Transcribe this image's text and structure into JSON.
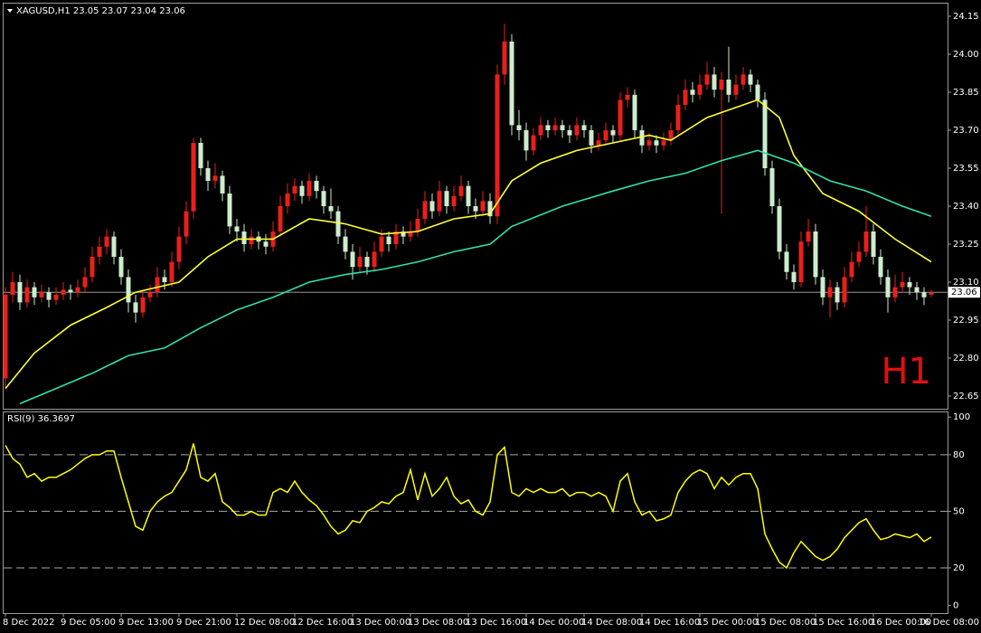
{
  "chart_data": {
    "type": "candlestick",
    "header": "XAGUSD,H1  23.05 23.07 23.04 23.06",
    "timeframe_badge": "H1",
    "up_color": "#e8201c",
    "down_color": "#cdeccd",
    "bid": 23.06,
    "ylim": [
      22.6,
      24.2
    ],
    "yticks": [
      {
        "value": 22.65,
        "label": "22.65"
      },
      {
        "value": 22.8,
        "label": "22.80"
      },
      {
        "value": 22.95,
        "label": "22.95"
      },
      {
        "value": 23.1,
        "label": "23.10"
      },
      {
        "value": 23.25,
        "label": "23.25"
      },
      {
        "value": 23.4,
        "label": "23.40"
      },
      {
        "value": 23.55,
        "label": "23.55"
      },
      {
        "value": 23.7,
        "label": "23.70"
      },
      {
        "value": 23.85,
        "label": "23.85"
      },
      {
        "value": 24,
        "label": "24.00"
      },
      {
        "value": 24.15,
        "label": "24.15"
      }
    ],
    "categories": [
      "8 Dec 2022",
      null,
      null,
      null,
      null,
      null,
      null,
      null,
      "9 Dec 05:00",
      null,
      null,
      null,
      null,
      null,
      null,
      null,
      "9 Dec 13:00",
      null,
      null,
      null,
      null,
      null,
      null,
      null,
      "9 Dec 21:00",
      null,
      null,
      null,
      null,
      null,
      null,
      null,
      "12 Dec 08:00",
      null,
      null,
      null,
      null,
      null,
      null,
      null,
      "12 Dec 16:00",
      null,
      null,
      null,
      null,
      null,
      null,
      null,
      "13 Dec 00:00",
      null,
      null,
      null,
      null,
      null,
      null,
      null,
      "13 Dec 08:00",
      null,
      null,
      null,
      null,
      null,
      null,
      null,
      "13 Dec 16:00",
      null,
      null,
      null,
      null,
      null,
      null,
      null,
      "14 Dec 00:00",
      null,
      null,
      null,
      null,
      null,
      null,
      null,
      "14 Dec 08:00",
      null,
      null,
      null,
      null,
      null,
      null,
      null,
      "14 Dec 16:00",
      null,
      null,
      null,
      null,
      null,
      null,
      null,
      "15 Dec 00:00",
      null,
      null,
      null,
      null,
      null,
      null,
      null,
      "15 Dec 08:00",
      null,
      null,
      null,
      null,
      null,
      null,
      null,
      "15 Dec 16:00",
      null,
      null,
      null,
      null,
      null,
      null,
      null,
      "16 Dec 00:00",
      null,
      null,
      null,
      null,
      null,
      null,
      null,
      "16 Dec 08:00"
    ],
    "candles": [
      [
        22.72,
        23.08,
        22.68,
        23.05
      ],
      [
        23.05,
        23.14,
        23.02,
        23.1
      ],
      [
        23.1,
        23.13,
        22.99,
        23.02
      ],
      [
        23.02,
        23.11,
        23.0,
        23.08
      ],
      [
        23.08,
        23.1,
        23.01,
        23.04
      ],
      [
        23.04,
        23.09,
        23.02,
        23.06
      ],
      [
        23.06,
        23.08,
        23.0,
        23.03
      ],
      [
        23.03,
        23.08,
        23.01,
        23.05
      ],
      [
        23.05,
        23.1,
        23.03,
        23.07
      ],
      [
        23.07,
        23.09,
        23.03,
        23.06
      ],
      [
        23.06,
        23.11,
        23.04,
        23.08
      ],
      [
        23.08,
        23.16,
        23.06,
        23.12
      ],
      [
        23.12,
        23.24,
        23.1,
        23.2
      ],
      [
        23.2,
        23.28,
        23.17,
        23.24
      ],
      [
        23.24,
        23.31,
        23.21,
        23.28
      ],
      [
        23.28,
        23.3,
        23.17,
        23.2
      ],
      [
        23.2,
        23.23,
        23.09,
        23.12
      ],
      [
        23.12,
        23.15,
        22.98,
        23.02
      ],
      [
        23.02,
        23.05,
        22.94,
        22.98
      ],
      [
        22.98,
        23.07,
        22.96,
        23.04
      ],
      [
        23.04,
        23.09,
        23.02,
        23.06
      ],
      [
        23.06,
        23.16,
        23.04,
        23.12
      ],
      [
        23.12,
        23.15,
        23.07,
        23.1
      ],
      [
        23.1,
        23.22,
        23.08,
        23.18
      ],
      [
        23.18,
        23.32,
        23.15,
        23.28
      ],
      [
        23.28,
        23.42,
        23.25,
        23.38
      ],
      [
        23.38,
        23.67,
        23.35,
        23.65
      ],
      [
        23.65,
        23.67,
        23.52,
        23.55
      ],
      [
        23.55,
        23.58,
        23.46,
        23.5
      ],
      [
        23.5,
        23.57,
        23.47,
        23.52
      ],
      [
        23.52,
        23.54,
        23.42,
        23.45
      ],
      [
        23.45,
        23.48,
        23.29,
        23.32
      ],
      [
        23.32,
        23.35,
        23.26,
        23.3
      ],
      [
        23.3,
        23.33,
        23.22,
        23.25
      ],
      [
        23.25,
        23.31,
        23.23,
        23.28
      ],
      [
        23.28,
        23.3,
        23.23,
        23.26
      ],
      [
        23.26,
        23.29,
        23.21,
        23.24
      ],
      [
        23.24,
        23.34,
        23.22,
        23.3
      ],
      [
        23.3,
        23.44,
        23.28,
        23.4
      ],
      [
        23.4,
        23.49,
        23.37,
        23.45
      ],
      [
        23.45,
        23.51,
        23.42,
        23.48
      ],
      [
        23.48,
        23.5,
        23.41,
        23.44
      ],
      [
        23.44,
        23.53,
        23.42,
        23.5
      ],
      [
        23.5,
        23.52,
        23.43,
        23.46
      ],
      [
        23.46,
        23.48,
        23.37,
        23.4
      ],
      [
        23.4,
        23.47,
        23.35,
        23.38
      ],
      [
        23.38,
        23.4,
        23.25,
        23.28
      ],
      [
        23.28,
        23.31,
        23.19,
        23.22
      ],
      [
        23.22,
        23.25,
        23.11,
        23.16
      ],
      [
        23.16,
        23.24,
        23.14,
        23.2
      ],
      [
        23.2,
        23.22,
        23.13,
        23.16
      ],
      [
        23.16,
        23.26,
        23.14,
        23.22
      ],
      [
        23.22,
        23.31,
        23.2,
        23.28
      ],
      [
        23.28,
        23.3,
        23.22,
        23.25
      ],
      [
        23.25,
        23.33,
        23.23,
        23.3
      ],
      [
        23.3,
        23.32,
        23.25,
        23.28
      ],
      [
        23.28,
        23.34,
        23.26,
        23.3
      ],
      [
        23.3,
        23.39,
        23.28,
        23.35
      ],
      [
        23.35,
        23.46,
        23.33,
        23.42
      ],
      [
        23.42,
        23.45,
        23.35,
        23.38
      ],
      [
        23.38,
        23.5,
        23.36,
        23.46
      ],
      [
        23.46,
        23.48,
        23.37,
        23.4
      ],
      [
        23.4,
        23.48,
        23.38,
        23.44
      ],
      [
        23.44,
        23.52,
        23.42,
        23.48
      ],
      [
        23.48,
        23.5,
        23.37,
        23.4
      ],
      [
        23.4,
        23.43,
        23.35,
        23.38
      ],
      [
        23.38,
        23.46,
        23.36,
        23.42
      ],
      [
        23.42,
        23.45,
        23.33,
        23.36
      ],
      [
        23.36,
        23.96,
        23.33,
        23.92
      ],
      [
        23.92,
        24.12,
        23.88,
        24.05
      ],
      [
        24.05,
        24.08,
        23.68,
        23.72
      ],
      [
        23.72,
        23.78,
        23.66,
        23.7
      ],
      [
        23.7,
        23.73,
        23.58,
        23.62
      ],
      [
        23.62,
        23.71,
        23.6,
        23.68
      ],
      [
        23.68,
        23.75,
        23.66,
        23.72
      ],
      [
        23.72,
        23.74,
        23.67,
        23.7
      ],
      [
        23.7,
        23.75,
        23.68,
        23.72
      ],
      [
        23.72,
        23.74,
        23.67,
        23.7
      ],
      [
        23.7,
        23.72,
        23.65,
        23.68
      ],
      [
        23.68,
        23.75,
        23.66,
        23.72
      ],
      [
        23.72,
        23.74,
        23.67,
        23.7
      ],
      [
        23.7,
        23.72,
        23.61,
        23.64
      ],
      [
        23.64,
        23.69,
        23.62,
        23.66
      ],
      [
        23.66,
        23.73,
        23.64,
        23.7
      ],
      [
        23.7,
        23.72,
        23.65,
        23.68
      ],
      [
        23.68,
        23.85,
        23.66,
        23.82
      ],
      [
        23.82,
        23.87,
        23.79,
        23.84
      ],
      [
        23.84,
        23.86,
        23.67,
        23.7
      ],
      [
        23.7,
        23.72,
        23.61,
        23.64
      ],
      [
        23.64,
        23.69,
        23.62,
        23.66
      ],
      [
        23.66,
        23.68,
        23.61,
        23.64
      ],
      [
        23.64,
        23.69,
        23.62,
        23.66
      ],
      [
        23.66,
        23.73,
        23.64,
        23.7
      ],
      [
        23.7,
        23.84,
        23.68,
        23.8
      ],
      [
        23.8,
        23.9,
        23.78,
        23.86
      ],
      [
        23.86,
        23.89,
        23.81,
        23.84
      ],
      [
        23.84,
        23.92,
        23.82,
        23.88
      ],
      [
        23.88,
        23.97,
        23.86,
        23.92
      ],
      [
        23.92,
        23.95,
        23.83,
        23.86
      ],
      [
        23.86,
        23.93,
        23.37,
        23.9
      ],
      [
        23.9,
        24.03,
        23.81,
        23.84
      ],
      [
        23.84,
        23.92,
        23.82,
        23.88
      ],
      [
        23.88,
        23.95,
        23.86,
        23.92
      ],
      [
        23.92,
        23.94,
        23.85,
        23.88
      ],
      [
        23.88,
        23.9,
        23.79,
        23.82
      ],
      [
        23.82,
        23.85,
        23.52,
        23.55
      ],
      [
        23.55,
        23.58,
        23.37,
        23.4
      ],
      [
        23.4,
        23.43,
        23.19,
        23.22
      ],
      [
        23.22,
        23.25,
        23.11,
        23.14
      ],
      [
        23.14,
        23.17,
        23.07,
        23.1
      ],
      [
        23.1,
        23.3,
        23.08,
        23.26
      ],
      [
        23.26,
        23.35,
        23.24,
        23.3
      ],
      [
        23.3,
        23.33,
        23.09,
        23.12
      ],
      [
        23.12,
        23.15,
        23.01,
        23.04
      ],
      [
        23.04,
        23.11,
        22.96,
        23.08
      ],
      [
        23.08,
        23.1,
        22.99,
        23.02
      ],
      [
        23.02,
        23.16,
        23.0,
        23.12
      ],
      [
        23.12,
        23.22,
        23.1,
        23.18
      ],
      [
        23.18,
        23.26,
        23.16,
        23.22
      ],
      [
        23.22,
        23.4,
        23.2,
        23.3
      ],
      [
        23.3,
        23.33,
        23.17,
        23.2
      ],
      [
        23.2,
        23.23,
        23.09,
        23.12
      ],
      [
        23.12,
        23.15,
        22.98,
        23.04
      ],
      [
        23.04,
        23.13,
        23.02,
        23.08
      ],
      [
        23.08,
        23.14,
        23.06,
        23.1
      ],
      [
        23.1,
        23.12,
        23.05,
        23.08
      ],
      [
        23.08,
        23.1,
        23.03,
        23.06
      ],
      [
        23.06,
        23.08,
        23.01,
        23.04
      ],
      [
        23.05,
        23.07,
        23.04,
        23.06
      ]
    ],
    "series": [
      {
        "color": "#ffff33",
        "x": [
          0,
          4,
          9,
          14,
          18,
          24,
          28,
          32,
          37,
          42,
          47,
          52,
          57,
          62,
          67,
          70,
          74,
          79,
          84,
          89,
          92,
          97,
          102,
          104,
          107,
          109,
          113,
          118,
          123,
          128
        ],
        "values": [
          22.68,
          22.82,
          22.93,
          23.0,
          23.06,
          23.1,
          23.2,
          23.27,
          23.27,
          23.35,
          23.33,
          23.29,
          23.3,
          23.35,
          23.37,
          23.5,
          23.57,
          23.62,
          23.65,
          23.68,
          23.66,
          23.75,
          23.8,
          23.82,
          23.75,
          23.6,
          23.45,
          23.38,
          23.27,
          23.18
        ]
      },
      {
        "color": "#33e0a8",
        "x": [
          2,
          7,
          12,
          17,
          22,
          27,
          32,
          37,
          42,
          47,
          52,
          57,
          62,
          67,
          70,
          77,
          84,
          89,
          94,
          99,
          104,
          109,
          114,
          119,
          124,
          128
        ],
        "values": [
          22.62,
          22.68,
          22.74,
          22.81,
          22.84,
          22.92,
          22.99,
          23.04,
          23.1,
          23.13,
          23.15,
          23.18,
          23.22,
          23.25,
          23.32,
          23.4,
          23.46,
          23.5,
          23.53,
          23.58,
          23.62,
          23.57,
          23.5,
          23.46,
          23.4,
          23.36
        ]
      }
    ],
    "rsi": {
      "type": "line",
      "label": "RSI(9) 36.3697",
      "color": "#ffff00",
      "ylim": [
        -4,
        102
      ],
      "yticks": [
        100,
        80,
        50,
        20,
        0
      ],
      "levels": [
        80,
        50,
        20
      ],
      "values": [
        85,
        78,
        75,
        68,
        70,
        66,
        68,
        68,
        70,
        72,
        75,
        78,
        80,
        80,
        82,
        82,
        68,
        55,
        42,
        40,
        50,
        55,
        58,
        60,
        66,
        72,
        86,
        68,
        66,
        70,
        55,
        52,
        48,
        48,
        50,
        48,
        48,
        60,
        62,
        60,
        66,
        60,
        56,
        53,
        48,
        42,
        38,
        40,
        45,
        44,
        50,
        52,
        55,
        54,
        58,
        60,
        72,
        56,
        70,
        58,
        62,
        68,
        58,
        54,
        56,
        50,
        48,
        55,
        80,
        84,
        60,
        58,
        62,
        60,
        62,
        60,
        60,
        62,
        58,
        60,
        60,
        58,
        60,
        58,
        50,
        66,
        70,
        55,
        48,
        50,
        45,
        46,
        48,
        60,
        66,
        70,
        72,
        70,
        62,
        68,
        64,
        68,
        70,
        70,
        62,
        38,
        30,
        23,
        20,
        28,
        34,
        30,
        26,
        24,
        26,
        30,
        36,
        40,
        44,
        46,
        40,
        35,
        36,
        38,
        37,
        36,
        38,
        34,
        36.3697
      ]
    }
  }
}
